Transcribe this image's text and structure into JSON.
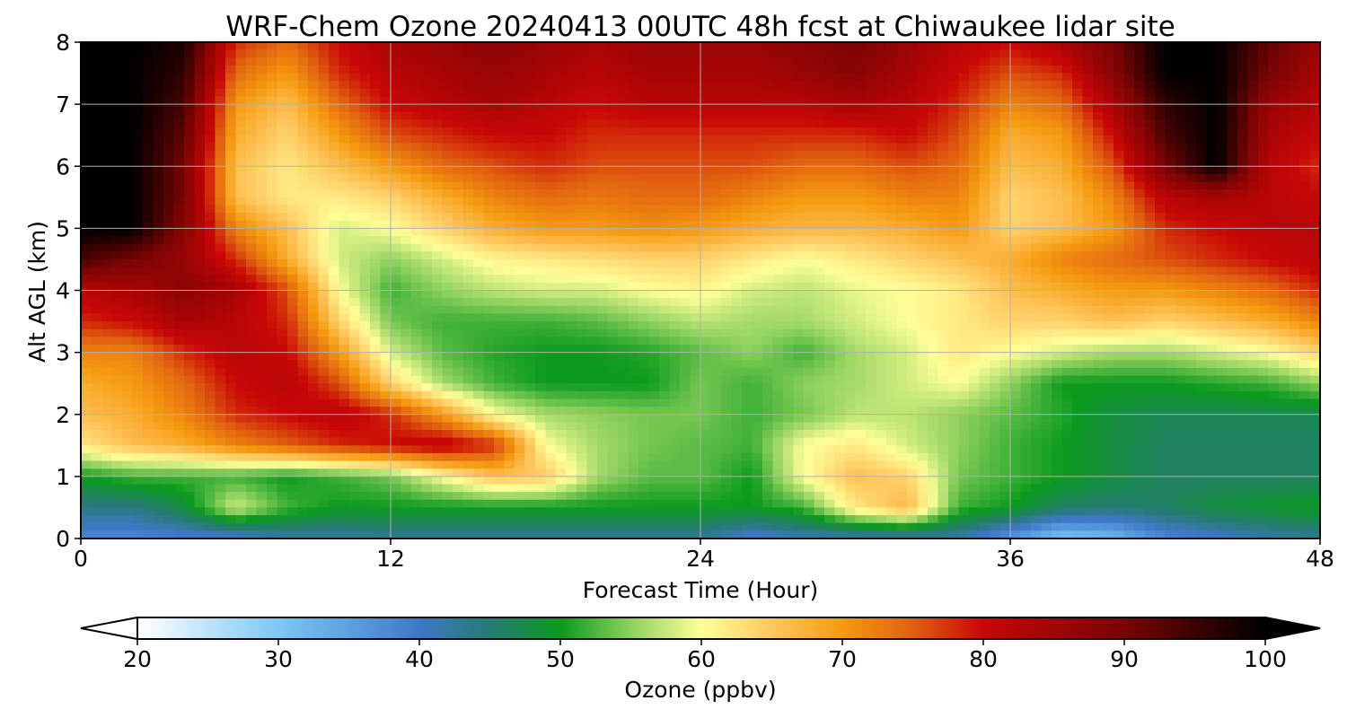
{
  "chart_data": {
    "type": "heatmap",
    "title": "WRF-Chem Ozone  20240413 00UTC 48h fcst at Chiwaukee lidar site",
    "xlabel": "Forecast Time (Hour)",
    "ylabel": "Alt AGL (km)",
    "xlim": [
      0,
      48
    ],
    "ylim": [
      0,
      8
    ],
    "xticks": [
      0,
      12,
      24,
      36,
      48
    ],
    "yticks": [
      0,
      1,
      2,
      3,
      4,
      5,
      6,
      7,
      8
    ],
    "grid": true,
    "colorbar": {
      "label": "Ozone  (ppbv)",
      "min": 20,
      "max": 100,
      "ticks": [
        20,
        30,
        40,
        50,
        60,
        70,
        80,
        90,
        100
      ],
      "extend": "both",
      "stops": [
        {
          "v": 20,
          "c": "#ffffff"
        },
        {
          "v": 30,
          "c": "#7cc8f5"
        },
        {
          "v": 40,
          "c": "#3e78c8"
        },
        {
          "v": 45,
          "c": "#267b74"
        },
        {
          "v": 50,
          "c": "#0b9a1e"
        },
        {
          "v": 55,
          "c": "#8fd15e"
        },
        {
          "v": 60,
          "c": "#ffff99"
        },
        {
          "v": 65,
          "c": "#ffc860"
        },
        {
          "v": 70,
          "c": "#f59a10"
        },
        {
          "v": 75,
          "c": "#e06010"
        },
        {
          "v": 80,
          "c": "#c80606"
        },
        {
          "v": 90,
          "c": "#780404"
        },
        {
          "v": 100,
          "c": "#000000"
        }
      ]
    },
    "z_hours": [
      0,
      2,
      4,
      6,
      8,
      10,
      12,
      14,
      16,
      18,
      20,
      22,
      24,
      26,
      28,
      30,
      32,
      34,
      36,
      38,
      40,
      42,
      44,
      46,
      48
    ],
    "z_alt_km": [
      0,
      0.5,
      1,
      1.5,
      2,
      2.5,
      3,
      3.5,
      4,
      4.5,
      5,
      5.5,
      6,
      6.5,
      7,
      7.5,
      8
    ],
    "z_ppbv": [
      [
        38,
        38,
        39,
        39,
        42,
        42,
        43,
        43,
        43,
        43,
        43,
        43,
        43,
        39,
        41,
        41,
        41,
        42,
        36,
        30,
        32,
        38,
        40,
        42,
        43
      ],
      [
        44,
        44,
        48,
        58,
        52,
        50,
        50,
        50,
        50,
        50,
        50,
        50,
        50,
        50,
        52,
        62,
        67,
        52,
        50,
        46,
        45,
        46,
        48,
        49,
        50
      ],
      [
        50,
        52,
        52,
        52,
        50,
        52,
        54,
        60,
        66,
        65,
        56,
        53,
        53,
        50,
        60,
        66,
        64,
        54,
        52,
        50,
        48,
        46,
        46,
        46,
        46
      ],
      [
        62,
        66,
        68,
        72,
        75,
        78,
        80,
        82,
        78,
        60,
        56,
        54,
        53,
        52,
        60,
        62,
        58,
        55,
        52,
        50,
        48,
        46,
        46,
        46,
        46
      ],
      [
        66,
        68,
        72,
        78,
        80,
        82,
        78,
        70,
        60,
        56,
        55,
        54,
        54,
        52,
        54,
        57,
        57,
        55,
        53,
        51,
        48,
        47,
        47,
        47,
        47
      ],
      [
        68,
        70,
        74,
        80,
        82,
        76,
        64,
        56,
        52,
        50,
        50,
        50,
        54,
        52,
        55,
        56,
        58,
        60,
        55,
        50,
        50,
        50,
        51,
        52,
        55
      ],
      [
        72,
        72,
        78,
        82,
        80,
        70,
        58,
        53,
        51,
        50,
        50,
        51,
        53,
        55,
        52,
        56,
        58,
        62,
        60,
        58,
        56,
        56,
        58,
        60,
        64
      ],
      [
        78,
        80,
        84,
        82,
        78,
        64,
        54,
        52,
        52,
        52,
        53,
        55,
        57,
        56,
        56,
        58,
        60,
        62,
        64,
        64,
        66,
        64,
        66,
        68,
        72
      ],
      [
        82,
        84,
        88,
        84,
        76,
        60,
        52,
        55,
        57,
        58,
        58,
        60,
        61,
        58,
        57,
        59,
        60,
        62,
        66,
        68,
        70,
        70,
        72,
        74,
        78
      ],
      [
        94,
        90,
        86,
        78,
        68,
        58,
        55,
        58,
        61,
        62,
        63,
        64,
        64,
        62,
        60,
        62,
        64,
        66,
        68,
        72,
        74,
        76,
        78,
        80,
        82
      ],
      [
        100,
        100,
        88,
        72,
        66,
        58,
        60,
        64,
        68,
        70,
        70,
        71,
        70,
        68,
        67,
        67,
        68,
        70,
        64,
        66,
        70,
        78,
        80,
        82,
        82
      ],
      [
        100,
        100,
        90,
        66,
        62,
        62,
        64,
        68,
        72,
        74,
        73,
        74,
        74,
        72,
        70,
        70,
        72,
        72,
        64,
        66,
        72,
        82,
        84,
        82,
        80
      ],
      [
        100,
        100,
        90,
        66,
        62,
        66,
        70,
        74,
        76,
        78,
        76,
        76,
        76,
        76,
        74,
        74,
        76,
        74,
        66,
        68,
        76,
        90,
        100,
        82,
        78
      ],
      [
        100,
        100,
        92,
        68,
        64,
        70,
        76,
        78,
        80,
        80,
        78,
        78,
        78,
        78,
        78,
        78,
        80,
        76,
        68,
        70,
        80,
        94,
        100,
        84,
        80
      ],
      [
        100,
        100,
        94,
        70,
        66,
        74,
        80,
        82,
        84,
        82,
        80,
        82,
        82,
        82,
        82,
        84,
        82,
        78,
        72,
        74,
        84,
        96,
        100,
        86,
        82
      ],
      [
        100,
        100,
        96,
        74,
        70,
        78,
        82,
        84,
        86,
        84,
        82,
        84,
        84,
        84,
        86,
        88,
        84,
        80,
        76,
        78,
        88,
        100,
        100,
        90,
        84
      ],
      [
        100,
        100,
        98,
        78,
        74,
        80,
        84,
        86,
        88,
        86,
        84,
        86,
        86,
        86,
        88,
        90,
        86,
        82,
        80,
        84,
        90,
        100,
        100,
        92,
        86
      ]
    ]
  }
}
